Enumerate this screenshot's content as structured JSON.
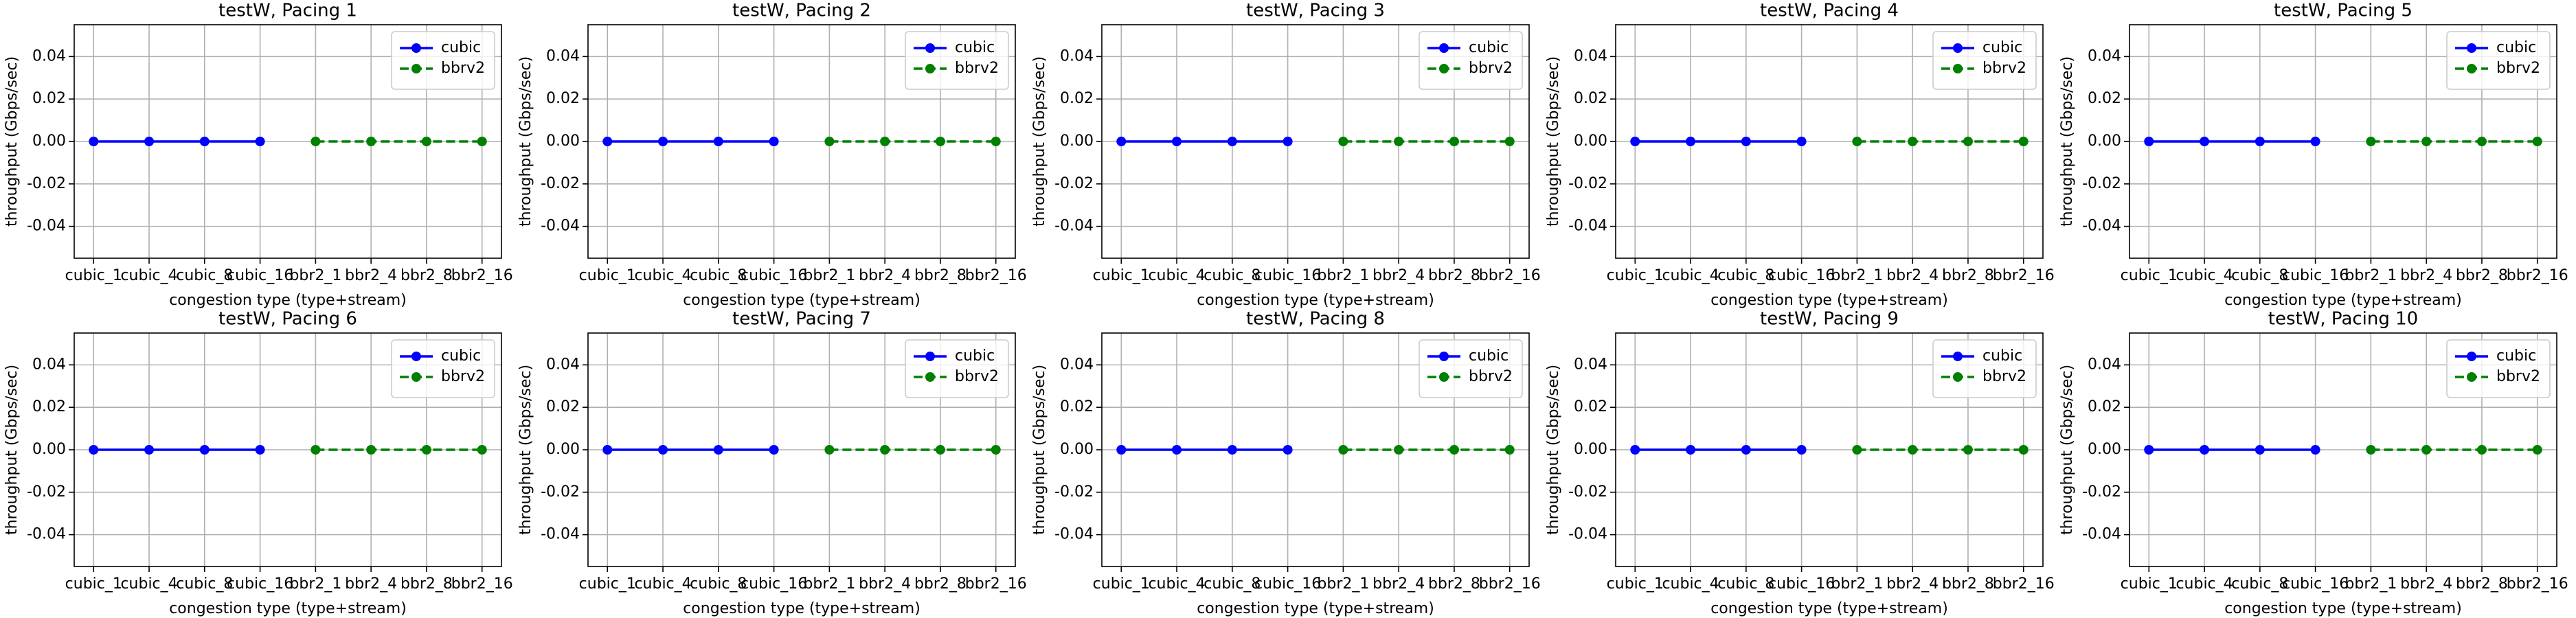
{
  "chart_data": [
    {
      "type": "line",
      "title": "testW, Pacing 1",
      "xlabel": "congestion type (type+stream)",
      "ylabel": "throughput (Gbps/sec)",
      "categories": [
        "cubic_1",
        "cubic_4",
        "cubic_8",
        "cubic_16",
        "bbr2_1",
        "bbr2_4",
        "bbr2_8",
        "bbr2_16"
      ],
      "series": [
        {
          "name": "cubic",
          "color": "#0000ff",
          "linestyle": "solid",
          "values": [
            0,
            0,
            0,
            0,
            null,
            null,
            null,
            null
          ]
        },
        {
          "name": "bbrv2",
          "color": "#008000",
          "linestyle": "dashed",
          "values": [
            null,
            null,
            null,
            null,
            0,
            0,
            0,
            0
          ]
        }
      ],
      "ylim": [
        -0.055,
        0.055
      ],
      "yticks": [
        -0.04,
        -0.02,
        {
          "value": 0,
          "label": "0.00"
        },
        0.02,
        0.04
      ],
      "grid": true,
      "legend": "upper right"
    },
    {
      "type": "line",
      "title": "testW, Pacing 2",
      "xlabel": "congestion type (type+stream)",
      "ylabel": "throughput (Gbps/sec)",
      "categories": [
        "cubic_1",
        "cubic_4",
        "cubic_8",
        "cubic_16",
        "bbr2_1",
        "bbr2_4",
        "bbr2_8",
        "bbr2_16"
      ],
      "series": [
        {
          "name": "cubic",
          "color": "#0000ff",
          "linestyle": "solid",
          "values": [
            0,
            0,
            0,
            0,
            null,
            null,
            null,
            null
          ]
        },
        {
          "name": "bbrv2",
          "color": "#008000",
          "linestyle": "dashed",
          "values": [
            null,
            null,
            null,
            null,
            0,
            0,
            0,
            0
          ]
        }
      ],
      "ylim": [
        -0.055,
        0.055
      ],
      "yticks": [
        -0.04,
        -0.02,
        {
          "value": 0,
          "label": "0.00"
        },
        0.02,
        0.04
      ],
      "grid": true,
      "legend": "upper right"
    },
    {
      "type": "line",
      "title": "testW, Pacing 3",
      "xlabel": "congestion type (type+stream)",
      "ylabel": "throughput (Gbps/sec)",
      "categories": [
        "cubic_1",
        "cubic_4",
        "cubic_8",
        "cubic_16",
        "bbr2_1",
        "bbr2_4",
        "bbr2_8",
        "bbr2_16"
      ],
      "series": [
        {
          "name": "cubic",
          "color": "#0000ff",
          "linestyle": "solid",
          "values": [
            0,
            0,
            0,
            0,
            null,
            null,
            null,
            null
          ]
        },
        {
          "name": "bbrv2",
          "color": "#008000",
          "linestyle": "dashed",
          "values": [
            null,
            null,
            null,
            null,
            0,
            0,
            0,
            0
          ]
        }
      ],
      "ylim": [
        -0.055,
        0.055
      ],
      "yticks": [
        -0.04,
        -0.02,
        {
          "value": 0,
          "label": "0.00"
        },
        0.02,
        0.04
      ],
      "grid": true,
      "legend": "upper right"
    },
    {
      "type": "line",
      "title": "testW, Pacing 4",
      "xlabel": "congestion type (type+stream)",
      "ylabel": "throughput (Gbps/sec)",
      "categories": [
        "cubic_1",
        "cubic_4",
        "cubic_8",
        "cubic_16",
        "bbr2_1",
        "bbr2_4",
        "bbr2_8",
        "bbr2_16"
      ],
      "series": [
        {
          "name": "cubic",
          "color": "#0000ff",
          "linestyle": "solid",
          "values": [
            0,
            0,
            0,
            0,
            null,
            null,
            null,
            null
          ]
        },
        {
          "name": "bbrv2",
          "color": "#008000",
          "linestyle": "dashed",
          "values": [
            null,
            null,
            null,
            null,
            0,
            0,
            0,
            0
          ]
        }
      ],
      "ylim": [
        -0.055,
        0.055
      ],
      "yticks": [
        -0.04,
        -0.02,
        {
          "value": 0,
          "label": "0.00"
        },
        0.02,
        0.04
      ],
      "grid": true,
      "legend": "upper right"
    },
    {
      "type": "line",
      "title": "testW, Pacing 5",
      "xlabel": "congestion type (type+stream)",
      "ylabel": "throughput (Gbps/sec)",
      "categories": [
        "cubic_1",
        "cubic_4",
        "cubic_8",
        "cubic_16",
        "bbr2_1",
        "bbr2_4",
        "bbr2_8",
        "bbr2_16"
      ],
      "series": [
        {
          "name": "cubic",
          "color": "#0000ff",
          "linestyle": "solid",
          "values": [
            0,
            0,
            0,
            0,
            null,
            null,
            null,
            null
          ]
        },
        {
          "name": "bbrv2",
          "color": "#008000",
          "linestyle": "dashed",
          "values": [
            null,
            null,
            null,
            null,
            0,
            0,
            0,
            0
          ]
        }
      ],
      "ylim": [
        -0.055,
        0.055
      ],
      "yticks": [
        -0.04,
        -0.02,
        {
          "value": 0,
          "label": "0.00"
        },
        0.02,
        0.04
      ],
      "grid": true,
      "legend": "upper right"
    },
    {
      "type": "line",
      "title": "testW, Pacing 6",
      "xlabel": "congestion type (type+stream)",
      "ylabel": "throughput (Gbps/sec)",
      "categories": [
        "cubic_1",
        "cubic_4",
        "cubic_8",
        "cubic_16",
        "bbr2_1",
        "bbr2_4",
        "bbr2_8",
        "bbr2_16"
      ],
      "series": [
        {
          "name": "cubic",
          "color": "#0000ff",
          "linestyle": "solid",
          "values": [
            0,
            0,
            0,
            0,
            null,
            null,
            null,
            null
          ]
        },
        {
          "name": "bbrv2",
          "color": "#008000",
          "linestyle": "dashed",
          "values": [
            null,
            null,
            null,
            null,
            0,
            0,
            0,
            0
          ]
        }
      ],
      "ylim": [
        -0.055,
        0.055
      ],
      "yticks": [
        -0.04,
        -0.02,
        {
          "value": 0,
          "label": "0.00"
        },
        0.02,
        0.04
      ],
      "grid": true,
      "legend": "upper right"
    },
    {
      "type": "line",
      "title": "testW, Pacing 7",
      "xlabel": "congestion type (type+stream)",
      "ylabel": "throughput (Gbps/sec)",
      "categories": [
        "cubic_1",
        "cubic_4",
        "cubic_8",
        "cubic_16",
        "bbr2_1",
        "bbr2_4",
        "bbr2_8",
        "bbr2_16"
      ],
      "series": [
        {
          "name": "cubic",
          "color": "#0000ff",
          "linestyle": "solid",
          "values": [
            0,
            0,
            0,
            0,
            null,
            null,
            null,
            null
          ]
        },
        {
          "name": "bbrv2",
          "color": "#008000",
          "linestyle": "dashed",
          "values": [
            null,
            null,
            null,
            null,
            0,
            0,
            0,
            0
          ]
        }
      ],
      "ylim": [
        -0.055,
        0.055
      ],
      "yticks": [
        -0.04,
        -0.02,
        {
          "value": 0,
          "label": "0.00"
        },
        0.02,
        0.04
      ],
      "grid": true,
      "legend": "upper right"
    },
    {
      "type": "line",
      "title": "testW, Pacing 8",
      "xlabel": "congestion type (type+stream)",
      "ylabel": "throughput (Gbps/sec)",
      "categories": [
        "cubic_1",
        "cubic_4",
        "cubic_8",
        "cubic_16",
        "bbr2_1",
        "bbr2_4",
        "bbr2_8",
        "bbr2_16"
      ],
      "series": [
        {
          "name": "cubic",
          "color": "#0000ff",
          "linestyle": "solid",
          "values": [
            0,
            0,
            0,
            0,
            null,
            null,
            null,
            null
          ]
        },
        {
          "name": "bbrv2",
          "color": "#008000",
          "linestyle": "dashed",
          "values": [
            null,
            null,
            null,
            null,
            0,
            0,
            0,
            0
          ]
        }
      ],
      "ylim": [
        -0.055,
        0.055
      ],
      "yticks": [
        -0.04,
        -0.02,
        {
          "value": 0,
          "label": "0.00"
        },
        0.02,
        0.04
      ],
      "grid": true,
      "legend": "upper right"
    },
    {
      "type": "line",
      "title": "testW, Pacing 9",
      "xlabel": "congestion type (type+stream)",
      "ylabel": "throughput (Gbps/sec)",
      "categories": [
        "cubic_1",
        "cubic_4",
        "cubic_8",
        "cubic_16",
        "bbr2_1",
        "bbr2_4",
        "bbr2_8",
        "bbr2_16"
      ],
      "series": [
        {
          "name": "cubic",
          "color": "#0000ff",
          "linestyle": "solid",
          "values": [
            0,
            0,
            0,
            0,
            null,
            null,
            null,
            null
          ]
        },
        {
          "name": "bbrv2",
          "color": "#008000",
          "linestyle": "dashed",
          "values": [
            null,
            null,
            null,
            null,
            0,
            0,
            0,
            0
          ]
        }
      ],
      "ylim": [
        -0.055,
        0.055
      ],
      "yticks": [
        -0.04,
        -0.02,
        {
          "value": 0,
          "label": "0.00"
        },
        0.02,
        0.04
      ],
      "grid": true,
      "legend": "upper right"
    },
    {
      "type": "line",
      "title": "testW, Pacing 10",
      "xlabel": "congestion type (type+stream)",
      "ylabel": "throughput (Gbps/sec)",
      "categories": [
        "cubic_1",
        "cubic_4",
        "cubic_8",
        "cubic_16",
        "bbr2_1",
        "bbr2_4",
        "bbr2_8",
        "bbr2_16"
      ],
      "series": [
        {
          "name": "cubic",
          "color": "#0000ff",
          "linestyle": "solid",
          "values": [
            0,
            0,
            0,
            0,
            null,
            null,
            null,
            null
          ]
        },
        {
          "name": "bbrv2",
          "color": "#008000",
          "linestyle": "dashed",
          "values": [
            null,
            null,
            null,
            null,
            0,
            0,
            0,
            0
          ]
        }
      ],
      "ylim": [
        -0.055,
        0.055
      ],
      "yticks": [
        -0.04,
        -0.02,
        {
          "value": 0,
          "label": "0.00"
        },
        0.02,
        0.04
      ],
      "grid": true,
      "legend": "upper right"
    }
  ]
}
